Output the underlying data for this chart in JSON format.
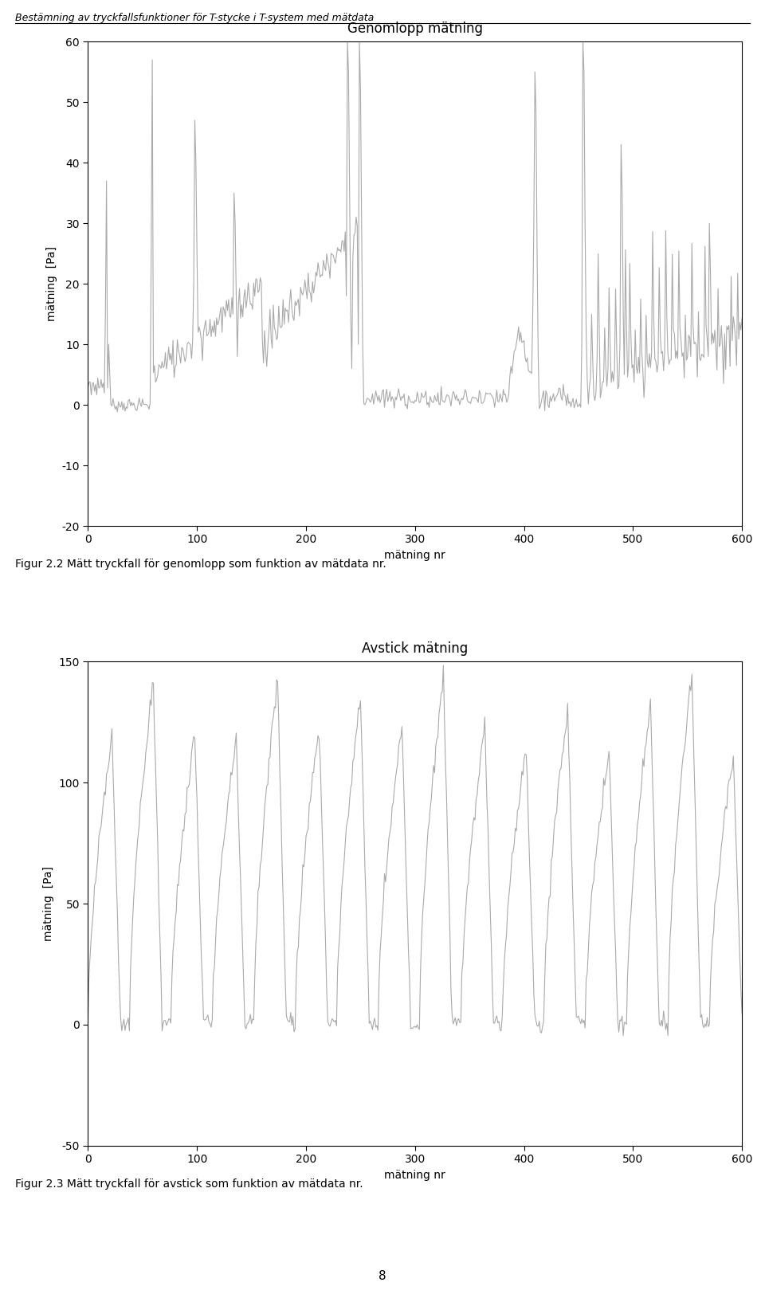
{
  "header_text": "Bestämning av tryckfallsfunktioner för T-stycke i T-system med mätdata",
  "plot1_title": "Genomlopp mätning",
  "plot2_title": "Avstick mätning",
  "xlabel": "mätning nr",
  "ylabel1": "mätning  [Pa]",
  "ylabel2": "mätning  [Pa]",
  "plot1_ylim": [
    -20,
    60
  ],
  "plot1_yticks": [
    -20,
    -10,
    0,
    10,
    20,
    30,
    40,
    50,
    60
  ],
  "plot2_ylim": [
    -50,
    150
  ],
  "plot2_yticks": [
    -50,
    0,
    50,
    100,
    150
  ],
  "xlim": [
    0,
    600
  ],
  "xticks": [
    0,
    100,
    200,
    300,
    400,
    500,
    600
  ],
  "caption1": "Figur 2.2 Mätt tryckfall för genomlopp som funktion av mätdata nr.",
  "caption2": "Figur 2.3 Mätt tryckfall för avstick som funktion av mätdata nr.",
  "page_number": "8",
  "line_color": "#aaaaaa",
  "line_width": 0.8,
  "background_color": "#ffffff",
  "header_fontsize": 9,
  "title_fontsize": 12,
  "label_fontsize": 10,
  "tick_fontsize": 10,
  "caption_fontsize": 10
}
